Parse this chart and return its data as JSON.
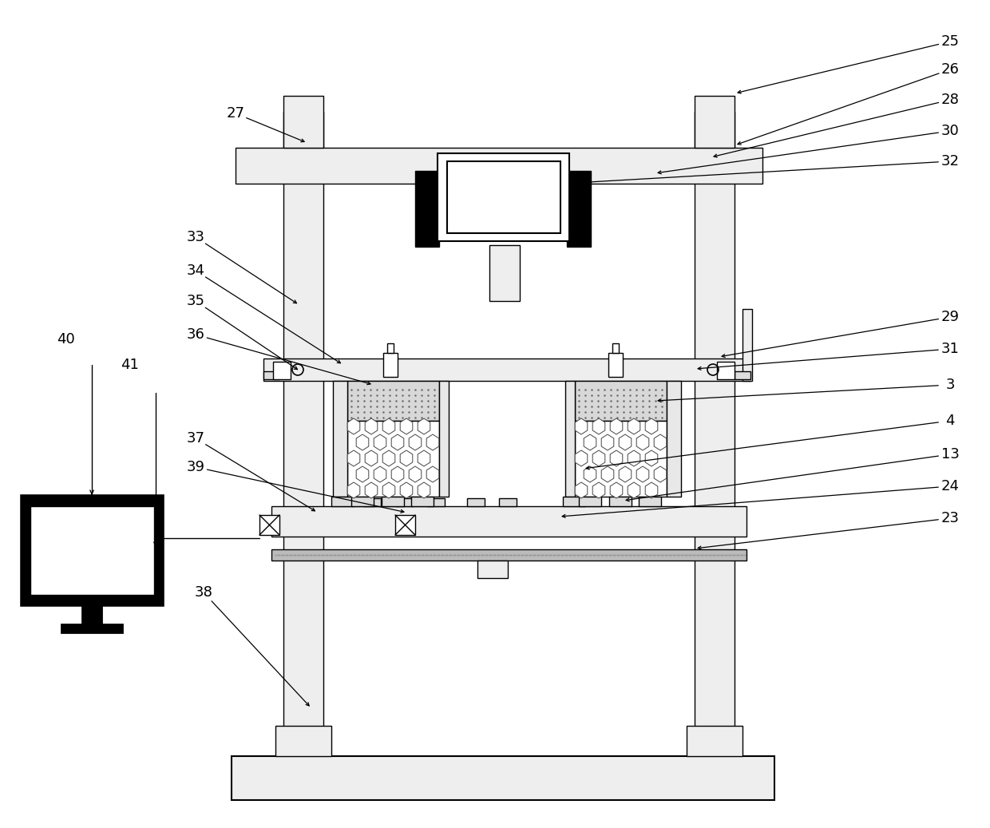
{
  "bg_color": "#ffffff",
  "lc": "#000000",
  "lw": 1.0,
  "fig_width": 12.4,
  "fig_height": 10.37,
  "dpi": 100
}
